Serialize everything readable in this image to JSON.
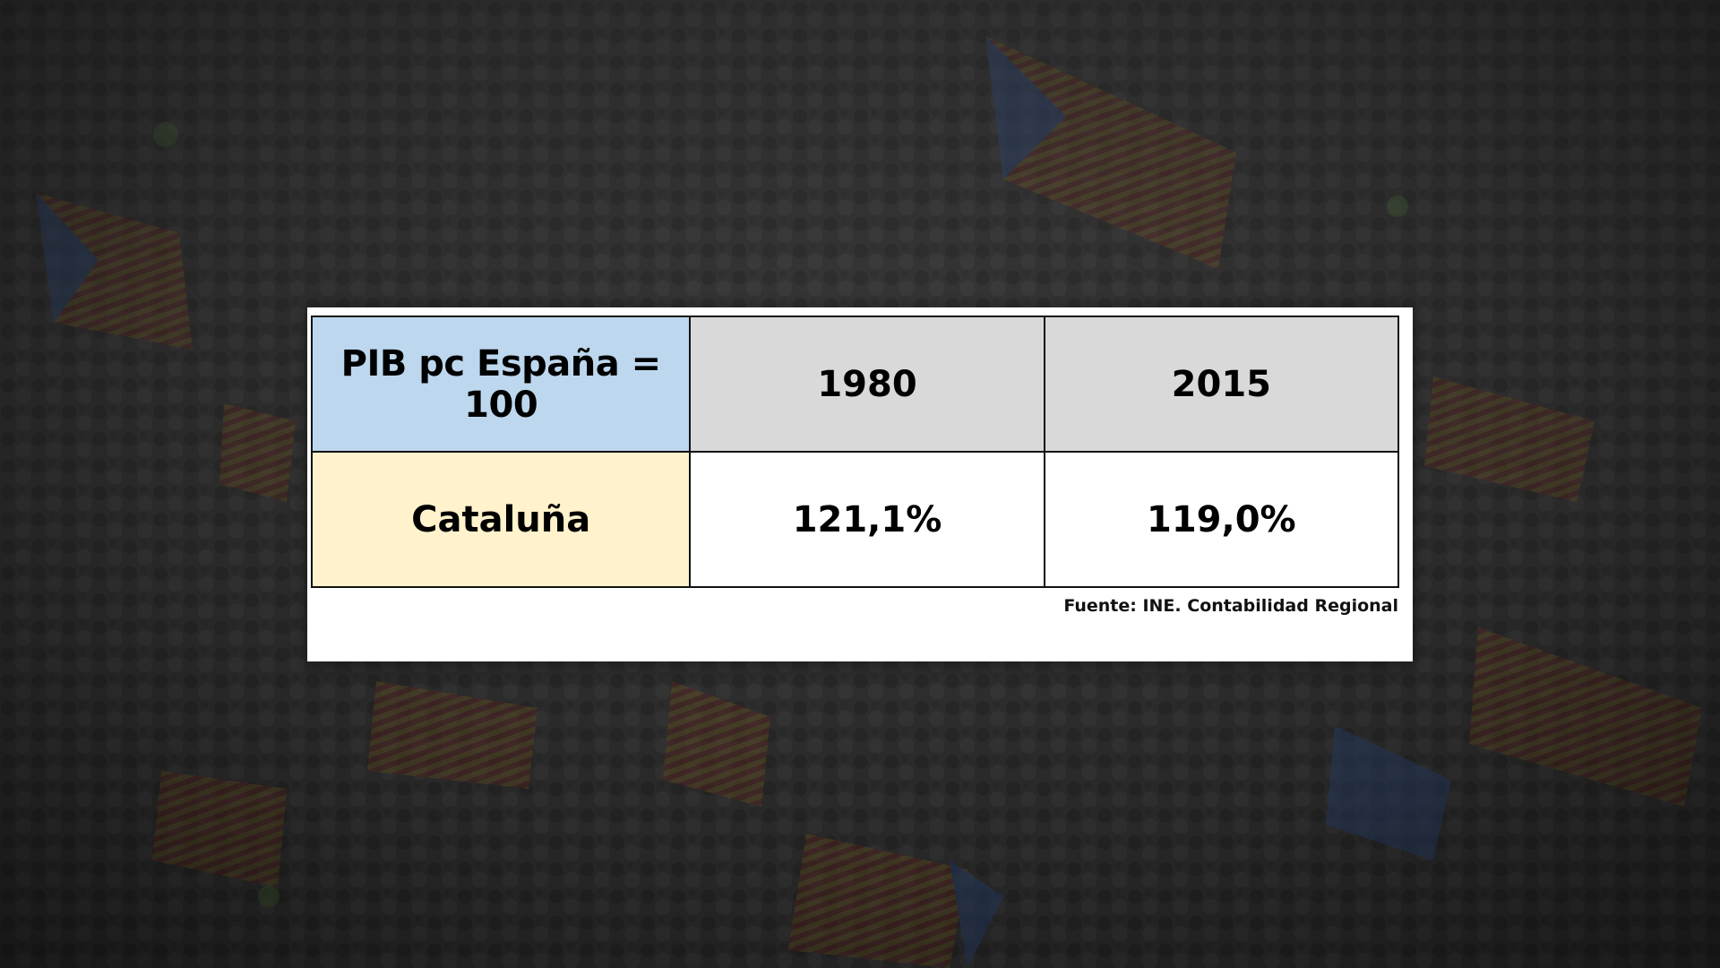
{
  "chart_data": {
    "type": "table",
    "corner_label": "PIB pc España = 100",
    "columns": [
      "1980",
      "2015"
    ],
    "rows": [
      {
        "label": "Cataluña",
        "values": [
          "121,1%",
          "119,0%"
        ]
      }
    ],
    "source": "Fuente: INE. Contabilidad Regional"
  },
  "colors": {
    "corner_fill": "#bdd7ee",
    "header_fill": "#d9d9d9",
    "row_label_fill": "#fff2cc",
    "value_fill": "#ffffff",
    "flag_yellow": "#c9a227",
    "flag_red": "#9c2b22",
    "flag_blue": "#2f4f8a"
  }
}
